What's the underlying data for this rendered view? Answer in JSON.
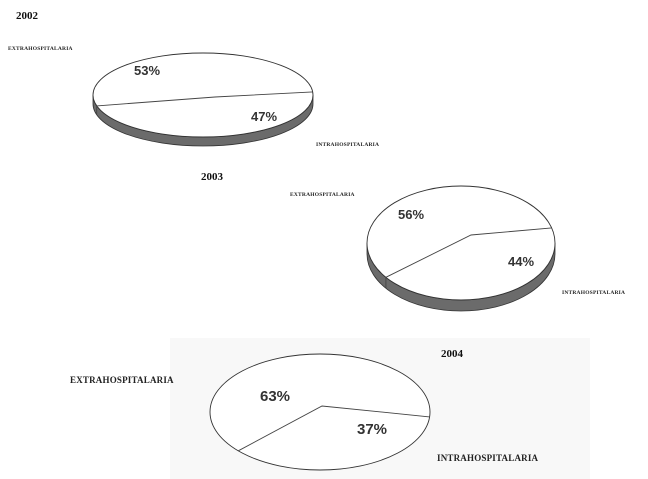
{
  "chart_data": [
    {
      "type": "pie",
      "title": "2002",
      "categories": [
        "EXTRAHOSPITALARIA",
        "INTRAHOSPITALARIA"
      ],
      "values": [
        53,
        47
      ],
      "value_labels": [
        "53%",
        "47%"
      ],
      "colors": [
        "#ffffff",
        "#ffffff"
      ],
      "style": "3d-tilted"
    },
    {
      "type": "pie",
      "title": "2003",
      "categories": [
        "EXTRAHOSPITALARIA",
        "INTRAHOSPITALARIA"
      ],
      "values": [
        56,
        44
      ],
      "value_labels": [
        "56%",
        "44%"
      ],
      "colors": [
        "#ffffff",
        "#ffffff"
      ],
      "style": "3d-tilted"
    },
    {
      "type": "pie",
      "title": "2004",
      "categories": [
        "EXTRAHOSPITALARIA",
        "INTRAHOSPITALARIA"
      ],
      "values": [
        63,
        37
      ],
      "value_labels": [
        "63%",
        "37%"
      ],
      "colors": [
        "#ffffff",
        "#ffffff"
      ],
      "style": "3d-tilted"
    }
  ]
}
